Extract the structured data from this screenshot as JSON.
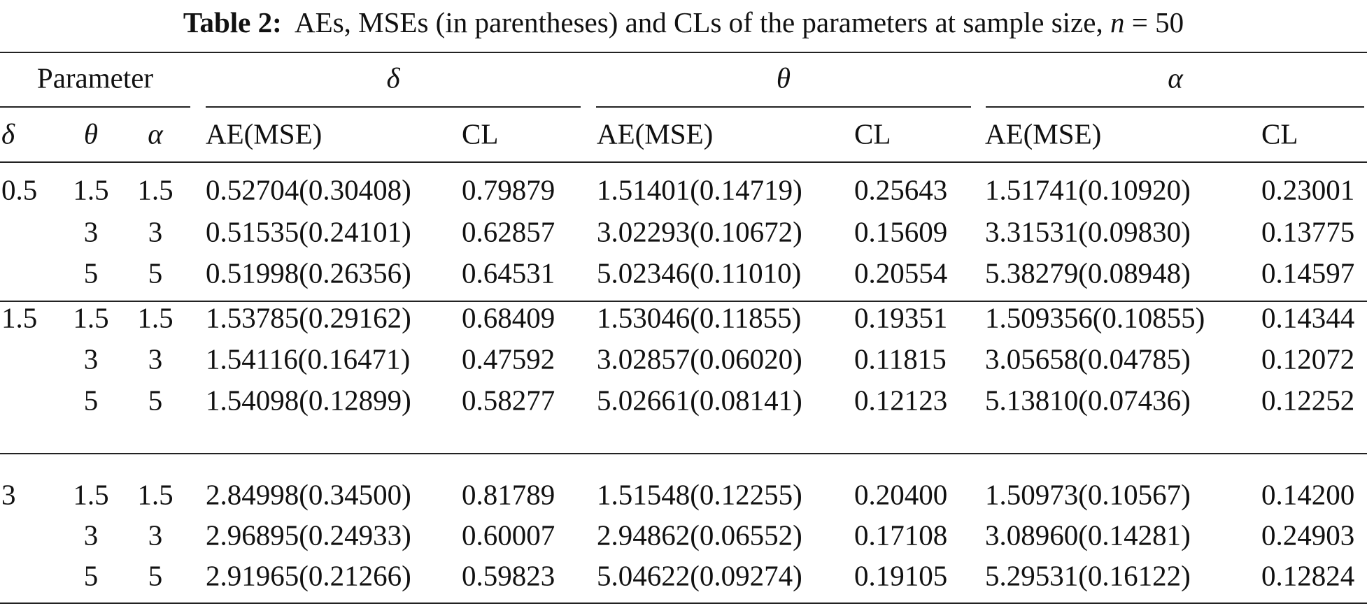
{
  "caption": {
    "label": "Table 2:",
    "text": "AEs, MSEs (in parentheses) and CLs of the parameters at sample size,",
    "var": "n",
    "eq": "= 50"
  },
  "table": {
    "group_headers": [
      "Parameter",
      "δ",
      "θ",
      "α"
    ],
    "sub_headers": [
      "δ",
      "θ",
      "α",
      "AE(MSE)",
      "CL",
      "AE(MSE)",
      "CL",
      "AE(MSE)",
      "CL"
    ],
    "groups": [
      {
        "delta": "0.5",
        "rows": [
          [
            "1.5",
            "1.5",
            "0.52704(0.30408)",
            "0.79879",
            "1.51401(0.14719)",
            "0.25643",
            "1.51741(0.10920)",
            "0.23001"
          ],
          [
            "3",
            "3",
            "0.51535(0.24101)",
            "0.62857",
            "3.02293(0.10672)",
            "0.15609",
            "3.31531(0.09830)",
            "0.13775"
          ],
          [
            "5",
            "5",
            "0.51998(0.26356)",
            "0.64531",
            "5.02346(0.11010)",
            "0.20554",
            "5.38279(0.08948)",
            "0.14597"
          ]
        ]
      },
      {
        "delta": "1.5",
        "rows": [
          [
            "1.5",
            "1.5",
            "1.53785(0.29162)",
            "0.68409",
            "1.53046(0.11855)",
            "0.19351",
            "1.509356(0.10855)",
            "0.14344"
          ],
          [
            "3",
            "3",
            "1.54116(0.16471)",
            "0.47592",
            "3.02857(0.06020)",
            "0.11815",
            "3.05658(0.04785)",
            "0.12072"
          ],
          [
            "5",
            "5",
            "1.54098(0.12899)",
            "0.58277",
            "5.02661(0.08141)",
            "0.12123",
            "5.13810(0.07436)",
            "0.12252"
          ]
        ]
      },
      {
        "delta": "3",
        "rows": [
          [
            "1.5",
            "1.5",
            "2.84998(0.34500)",
            "0.81789",
            "1.51548(0.12255)",
            "0.20400",
            "1.50973(0.10567)",
            "0.14200"
          ],
          [
            "3",
            "3",
            "2.96895(0.24933)",
            "0.60007",
            "2.94862(0.06552)",
            "0.17108",
            "3.08960(0.14281)",
            "0.24903"
          ],
          [
            "5",
            "5",
            "2.91965(0.21266)",
            "0.59823",
            "5.04622(0.09274)",
            "0.19105",
            "5.29531(0.16122)",
            "0.12824"
          ]
        ]
      }
    ]
  }
}
